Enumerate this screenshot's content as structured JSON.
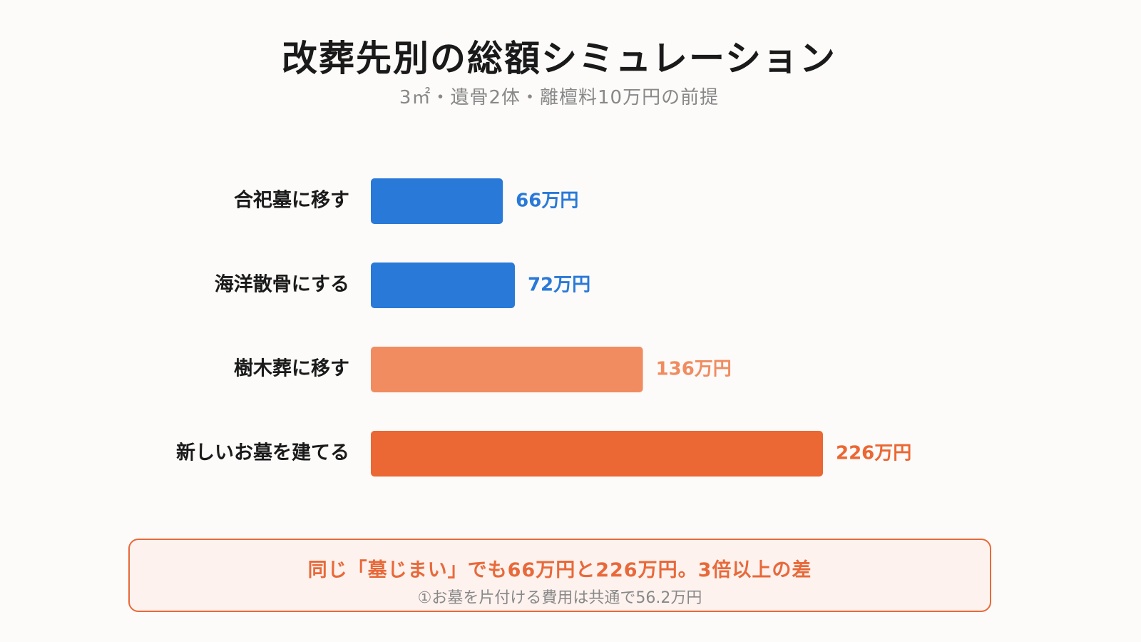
{
  "chart_data": {
    "type": "bar",
    "orientation": "horizontal",
    "title": "改葬先別の総額シミュレーション",
    "subtitle": "3㎡・遺骨2体・離檀料10万円の前提",
    "categories": [
      "合祀墓に移す",
      "海洋散骨にする",
      "樹木葬に移す",
      "新しいお墓を建てる"
    ],
    "values": [
      66,
      72,
      136,
      226
    ],
    "value_labels": [
      "66万円",
      "72万円",
      "136万円",
      "226万円"
    ],
    "colors": [
      "#2979d8",
      "#2979d8",
      "#f08c60",
      "#eb6733"
    ],
    "xlim": [
      0,
      226
    ],
    "grid": false
  },
  "callout": {
    "main": "同じ「墓じまい」でも66万円と226万円。3倍以上の差",
    "sub": "①お墓を片付ける費用は共通で56.2万円"
  }
}
